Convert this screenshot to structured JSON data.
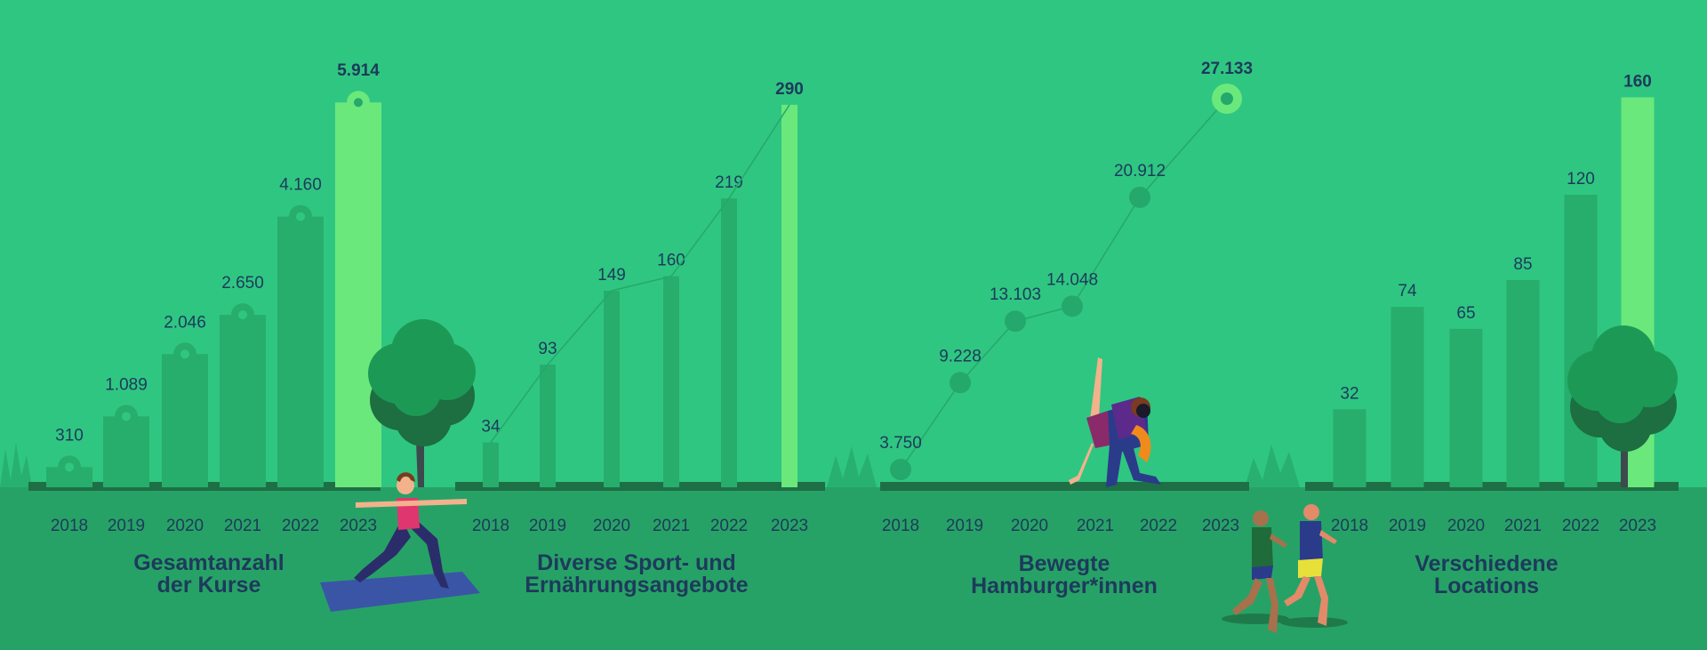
{
  "colors": {
    "background": "#2fc681",
    "ground": "#27a266",
    "baseline": "#1e6f45",
    "bar": "#27ad6c",
    "bar_highlight": "#6be87c",
    "line": "#25a86b",
    "text": "#1d3a5c"
  },
  "chart_data": [
    {
      "type": "bar",
      "title": [
        "Gesamtanzahl",
        "der Kurse"
      ],
      "categories": [
        "2018",
        "2019",
        "2020",
        "2021",
        "2022",
        "2023"
      ],
      "values": [
        310,
        1089,
        2046,
        2650,
        4160,
        5914
      ],
      "labels": [
        "310",
        "1.089",
        "2.046",
        "2.650",
        "4.160",
        "5.914"
      ],
      "highlight": "2023",
      "markers": "circle-tag on bar tops",
      "ylim": [
        0,
        6300
      ]
    },
    {
      "type": "bar",
      "title": [
        "Diverse Sport- und",
        "Ernährungsangebote"
      ],
      "categories": [
        "2018",
        "2019",
        "2020",
        "2021",
        "2022",
        "2023"
      ],
      "values": [
        34,
        93,
        149,
        160,
        219,
        290
      ],
      "labels": [
        "34",
        "93",
        "149",
        "160",
        "219",
        "290"
      ],
      "highlight": "2023",
      "connecting_line": true,
      "ylim": [
        0,
        300
      ]
    },
    {
      "type": "line",
      "title": [
        "Bewegte",
        "Hamburger*innen"
      ],
      "categories": [
        "2018",
        "2019",
        "2020",
        "2021",
        "2022",
        "2023"
      ],
      "values": [
        3750,
        9228,
        13103,
        14048,
        20912,
        27133
      ],
      "labels": [
        "3.750",
        "9.228",
        "13.103",
        "14.048",
        "20.912",
        "27.133"
      ],
      "highlight": "2023"
    },
    {
      "type": "bar",
      "title": [
        "Verschiedene",
        "Locations"
      ],
      "categories": [
        "2018",
        "2019",
        "2020",
        "2021",
        "2022",
        "2023"
      ],
      "values": [
        32,
        74,
        65,
        85,
        120,
        160
      ],
      "labels": [
        "32",
        "74",
        "65",
        "85",
        "120",
        "160"
      ],
      "highlight": "2023",
      "ylim": [
        0,
        166
      ]
    }
  ],
  "illustrations": [
    "tree-icon",
    "yoga-woman-icon",
    "dancing-couple-icon",
    "runners-icon",
    "grass-icon"
  ]
}
